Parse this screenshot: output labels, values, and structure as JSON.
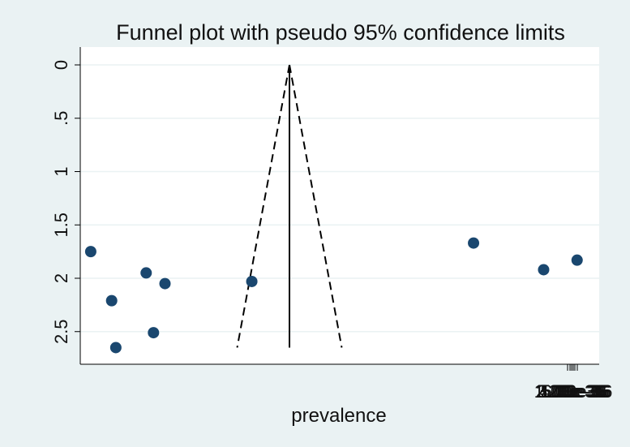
{
  "colors": {
    "background": "#eaf2f3",
    "plot_area": "#ffffff",
    "grid": "#eaf2f3",
    "marker": "#1a476f",
    "line": "#000000"
  },
  "chart_data": {
    "type": "scatter",
    "title": "Funnel plot with pseudo 95% confidence limits",
    "xlabel": "prevalence",
    "ylabel": "",
    "y_reversed": true,
    "ylim": [
      0,
      2.65
    ],
    "yticks": [
      0,
      0.5,
      1,
      1.5,
      2,
      2.5
    ],
    "ytick_labels": [
      "0",
      ".5",
      "1",
      "1.5",
      "2",
      "2.5"
    ],
    "xticks": [
      1.2e-36,
      2e-36,
      3e-36,
      4e-36,
      5e-36,
      6e-36
    ],
    "xtick_labels": [
      "1.20e-36",
      "2.00e-36",
      "3.00e-36",
      "4.00e-36",
      "5.00e-36",
      "6.00e-36"
    ],
    "grid": true,
    "legend": "none",
    "pooled_estimate_line": {
      "x": 0,
      "y_range": [
        0,
        2.65
      ],
      "style": "solid"
    },
    "confidence_limits": {
      "level": "95%",
      "style": "dashed",
      "apex_se": 0,
      "base_se": 2.65,
      "base_half_width": 0.5
    },
    "series": [
      {
        "points": [
          {
            "x": -1.9,
            "y": 1.75
          },
          {
            "x": -1.7,
            "y": 2.21
          },
          {
            "x": -1.66,
            "y": 2.65
          },
          {
            "x": -1.37,
            "y": 1.95
          },
          {
            "x": -1.3,
            "y": 2.51
          },
          {
            "x": -1.19,
            "y": 2.05
          },
          {
            "x": -0.36,
            "y": 2.03
          },
          {
            "x": 1.76,
            "y": 1.67
          },
          {
            "x": 2.43,
            "y": 1.92
          },
          {
            "x": 2.75,
            "y": 1.83
          }
        ]
      }
    ]
  }
}
